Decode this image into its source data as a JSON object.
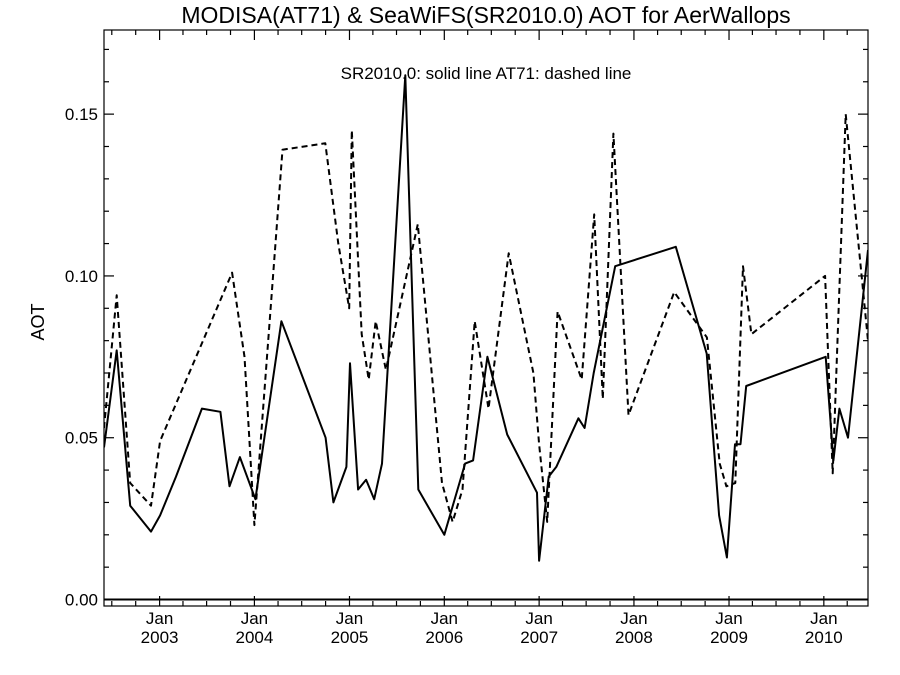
{
  "chart_data": {
    "type": "line",
    "title": "MODISA(AT71) & SeaWiFS(SR2010.0)  AOT for AerWallops",
    "legend_text": "SR2010.0: solid line   AT71: dashed line",
    "ylabel": "AOT",
    "xlabel": "",
    "xlim": [
      "2002-06-01",
      "2010-06-20"
    ],
    "ylim": [
      -0.002,
      0.176
    ],
    "y_ticks": [
      0.0,
      0.05,
      0.1,
      0.15
    ],
    "y_tick_labels": [
      "0.00",
      "0.05",
      "0.10",
      "0.15"
    ],
    "x_ticks": [
      "2003-01-01",
      "2004-01-01",
      "2005-01-01",
      "2006-01-01",
      "2007-01-01",
      "2008-01-01",
      "2009-01-01",
      "2010-01-01"
    ],
    "x_tick_labels_top": [
      "Jan",
      "Jan",
      "Jan",
      "Jan",
      "Jan",
      "Jan",
      "Jan",
      "Jan"
    ],
    "x_tick_labels_bottom": [
      "2003",
      "2004",
      "2005",
      "2006",
      "2007",
      "2008",
      "2009",
      "2010"
    ],
    "zero_line": true,
    "series": [
      {
        "name": "SR2010.0",
        "style": "solid",
        "color": "#000000",
        "x": [
          "2002-06-01",
          "2002-07-20",
          "2002-09-10",
          "2002-11-29",
          "2003-01-03",
          "2003-03-05",
          "2003-06-13",
          "2003-08-23",
          "2003-09-27",
          "2003-11-06",
          "2004-01-05",
          "2004-04-14",
          "2004-10-01",
          "2004-10-31",
          "2004-12-20",
          "2005-01-03",
          "2005-02-03",
          "2005-03-06",
          "2005-04-06",
          "2005-05-06",
          "2005-08-04",
          "2005-09-23",
          "2006-01-01",
          "2006-03-22",
          "2006-04-22",
          "2006-06-16",
          "2006-08-31",
          "2006-12-24",
          "2007-01-01",
          "2007-02-07",
          "2007-03-08",
          "2007-06-01",
          "2007-06-25",
          "2007-07-30",
          "2007-10-21",
          "2008-06-10",
          "2008-10-07",
          "2008-11-24",
          "2008-12-24",
          "2009-01-24",
          "2009-02-14",
          "2009-03-08",
          "2010-01-08",
          "2010-02-07",
          "2010-03-02",
          "2010-04-04",
          "2010-06-20"
        ],
        "values": [
          0.047,
          0.077,
          0.029,
          0.021,
          0.026,
          0.038,
          0.059,
          0.058,
          0.035,
          0.044,
          0.031,
          0.086,
          0.05,
          0.03,
          0.041,
          0.073,
          0.034,
          0.037,
          0.031,
          0.042,
          0.162,
          0.034,
          0.02,
          0.042,
          0.043,
          0.075,
          0.051,
          0.033,
          0.012,
          0.038,
          0.041,
          0.056,
          0.053,
          0.07,
          0.103,
          0.109,
          0.076,
          0.026,
          0.013,
          0.048,
          0.048,
          0.066,
          0.075,
          0.043,
          0.059,
          0.05,
          0.108
        ]
      },
      {
        "name": "AT71",
        "style": "dashed",
        "color": "#000000",
        "x": [
          "2002-06-01",
          "2002-07-20",
          "2002-09-10",
          "2002-11-29",
          "2003-01-03",
          "2003-10-07",
          "2003-11-24",
          "2004-01-01",
          "2004-04-18",
          "2004-09-30",
          "2004-11-19",
          "2004-12-31",
          "2005-01-10",
          "2005-02-17",
          "2005-03-16",
          "2005-04-12",
          "2005-05-21",
          "2005-09-21",
          "2005-12-23",
          "2006-02-02",
          "2006-03-12",
          "2006-04-28",
          "2006-06-20",
          "2006-09-06",
          "2006-12-10",
          "2007-01-01",
          "2007-02-01",
          "2007-03-13",
          "2007-06-14",
          "2007-08-01",
          "2007-09-03",
          "2007-10-14",
          "2007-12-11",
          "2008-06-04",
          "2008-10-08",
          "2008-11-26",
          "2008-12-22",
          "2009-01-25",
          "2009-02-24",
          "2009-03-28",
          "2010-01-06",
          "2010-02-04",
          "2010-03-26",
          "2010-06-20"
        ],
        "values": [
          0.053,
          0.094,
          0.036,
          0.029,
          0.049,
          0.101,
          0.075,
          0.023,
          0.139,
          0.141,
          0.11,
          0.09,
          0.145,
          0.082,
          0.068,
          0.086,
          0.071,
          0.116,
          0.036,
          0.024,
          0.034,
          0.086,
          0.059,
          0.107,
          0.07,
          0.048,
          0.024,
          0.089,
          0.068,
          0.119,
          0.062,
          0.144,
          0.057,
          0.095,
          0.081,
          0.042,
          0.035,
          0.036,
          0.103,
          0.082,
          0.1,
          0.039,
          0.15,
          0.08
        ]
      }
    ]
  }
}
